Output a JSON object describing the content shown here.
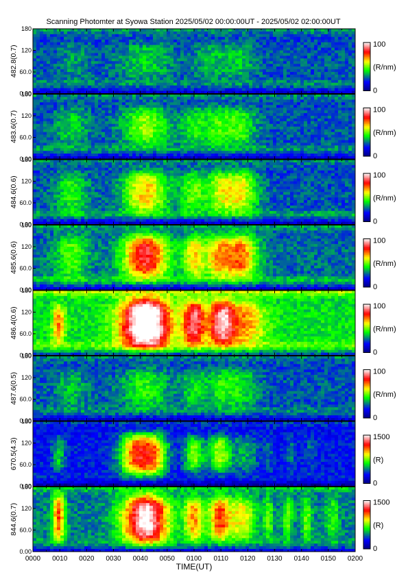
{
  "title": "Scanning Photomter at Syowa Station 2025/05/02 00:00:00UT - 2025/05/02 02:00:00UT",
  "chart_data": {
    "type": "heatmap",
    "title": "Scanning Photomter at Syowa Station 2025/05/02 00:00:00UT - 2025/05/02 02:00:00UT",
    "xlabel": "TIME(UT)",
    "x_ticks": [
      "0000",
      "0010",
      "0020",
      "0030",
      "0040",
      "0050",
      "0100",
      "0110",
      "0120",
      "0130",
      "0140",
      "0150",
      "0200"
    ],
    "xlim": [
      "0000",
      "0200"
    ],
    "y_ticks": [
      "0.00",
      "60.0",
      "120",
      "180"
    ],
    "ylim": [
      0,
      180
    ],
    "colormap": [
      "#000080",
      "#0000ff",
      "#00ff00",
      "#ffff00",
      "#ff0000",
      "#ffffff"
    ],
    "panels": [
      {
        "ylabel": "482.8(0.7)",
        "cbar_unit": "(R/nm)",
        "cbar_min": "0",
        "cbar_max": "100",
        "bg": 0.22,
        "rband": 0.07,
        "top": 0.24,
        "events": [
          {
            "t": 0.13,
            "w": 0.05,
            "a": 0.07,
            "lo": 30,
            "hi": 150
          },
          {
            "t": 0.35,
            "w": 0.08,
            "a": 0.13,
            "lo": 30,
            "hi": 150
          },
          {
            "t": 0.55,
            "w": 0.05,
            "a": 0.1,
            "lo": 30,
            "hi": 150
          },
          {
            "t": 0.64,
            "w": 0.05,
            "a": 0.11,
            "lo": 30,
            "hi": 150
          }
        ]
      },
      {
        "ylabel": "483.6(0.7)",
        "cbar_unit": "(R/nm)",
        "cbar_min": "0",
        "cbar_max": "100",
        "bg": 0.22,
        "rband": 0.08,
        "top": 0.22,
        "events": [
          {
            "t": 0.12,
            "w": 0.05,
            "a": 0.13,
            "lo": 25,
            "hi": 155
          },
          {
            "t": 0.35,
            "w": 0.07,
            "a": 0.26,
            "lo": 25,
            "hi": 155
          },
          {
            "t": 0.5,
            "w": 0.04,
            "a": 0.16,
            "lo": 25,
            "hi": 155
          },
          {
            "t": 0.57,
            "w": 0.04,
            "a": 0.17,
            "lo": 25,
            "hi": 155
          },
          {
            "t": 0.64,
            "w": 0.05,
            "a": 0.2,
            "lo": 25,
            "hi": 155
          }
        ]
      },
      {
        "ylabel": "484.6(0.6)",
        "cbar_unit": "(R/nm)",
        "cbar_min": "0",
        "cbar_max": "100",
        "bg": 0.22,
        "rband": 0.1,
        "top": 0.22,
        "events": [
          {
            "t": 0.12,
            "w": 0.05,
            "a": 0.17,
            "lo": 20,
            "hi": 160
          },
          {
            "t": 0.35,
            "w": 0.07,
            "a": 0.38,
            "lo": 20,
            "hi": 160
          },
          {
            "t": 0.5,
            "w": 0.04,
            "a": 0.22,
            "lo": 20,
            "hi": 160
          },
          {
            "t": 0.58,
            "w": 0.04,
            "a": 0.26,
            "lo": 20,
            "hi": 160
          },
          {
            "t": 0.645,
            "w": 0.05,
            "a": 0.33,
            "lo": 20,
            "hi": 160
          }
        ]
      },
      {
        "ylabel": "485.6(0.6)",
        "cbar_unit": "(R/nm)",
        "cbar_min": "0",
        "cbar_max": "100",
        "bg": 0.24,
        "rband": 0.11,
        "top": 0.24,
        "events": [
          {
            "t": 0.12,
            "w": 0.05,
            "a": 0.2,
            "lo": 20,
            "hi": 165
          },
          {
            "t": 0.35,
            "w": 0.07,
            "a": 0.56,
            "lo": 20,
            "hi": 165
          },
          {
            "t": 0.5,
            "w": 0.035,
            "a": 0.34,
            "lo": 20,
            "hi": 165
          },
          {
            "t": 0.575,
            "w": 0.04,
            "a": 0.35,
            "lo": 20,
            "hi": 165
          },
          {
            "t": 0.645,
            "w": 0.05,
            "a": 0.44,
            "lo": 20,
            "hi": 165
          }
        ]
      },
      {
        "ylabel": "486.4(0.6)",
        "cbar_unit": "(R/nm)",
        "cbar_min": "0",
        "cbar_max": "100",
        "bg": 0.36,
        "rband": 0.1,
        "top": 0.45,
        "events": [
          {
            "t": 0.08,
            "w": 0.02,
            "a": 0.3,
            "lo": 25,
            "hi": 150
          },
          {
            "t": 0.35,
            "w": 0.075,
            "a": 0.78,
            "lo": 10,
            "hi": 170
          },
          {
            "t": 0.5,
            "w": 0.035,
            "a": 0.5,
            "lo": 15,
            "hi": 165
          },
          {
            "t": 0.585,
            "w": 0.04,
            "a": 0.52,
            "lo": 15,
            "hi": 165
          },
          {
            "t": 0.66,
            "w": 0.06,
            "a": 0.28,
            "lo": 15,
            "hi": 165
          }
        ]
      },
      {
        "ylabel": "487.6(0.5)",
        "cbar_unit": "(R/nm)",
        "cbar_min": "0",
        "cbar_max": "100",
        "bg": 0.22,
        "rband": 0.07,
        "top": 0.22,
        "events": [
          {
            "t": 0.12,
            "w": 0.05,
            "a": 0.1,
            "lo": 25,
            "hi": 155
          },
          {
            "t": 0.35,
            "w": 0.07,
            "a": 0.18,
            "lo": 25,
            "hi": 155
          },
          {
            "t": 0.5,
            "w": 0.04,
            "a": 0.14,
            "lo": 25,
            "hi": 155
          },
          {
            "t": 0.58,
            "w": 0.04,
            "a": 0.14,
            "lo": 25,
            "hi": 155
          },
          {
            "t": 0.645,
            "w": 0.05,
            "a": 0.15,
            "lo": 25,
            "hi": 155
          }
        ]
      },
      {
        "ylabel": "670.5(4.3)",
        "cbar_unit": "(R)",
        "cbar_min": "0",
        "cbar_max": "1500",
        "bg": 0.16,
        "rband": 0.03,
        "top": 0.18,
        "events": [
          {
            "t": 0.08,
            "w": 0.02,
            "a": 0.18,
            "lo": 30,
            "hi": 150
          },
          {
            "t": 0.32,
            "w": 0.05,
            "a": 0.55,
            "lo": 20,
            "hi": 155
          },
          {
            "t": 0.38,
            "w": 0.04,
            "a": 0.38,
            "lo": 20,
            "hi": 155
          },
          {
            "t": 0.5,
            "w": 0.03,
            "a": 0.3,
            "lo": 30,
            "hi": 150
          },
          {
            "t": 0.58,
            "w": 0.035,
            "a": 0.34,
            "lo": 30,
            "hi": 150
          },
          {
            "t": 0.66,
            "w": 0.04,
            "a": 0.14,
            "lo": 30,
            "hi": 150
          },
          {
            "t": 0.73,
            "w": 0.015,
            "a": 0.08,
            "lo": 30,
            "hi": 150
          },
          {
            "t": 0.8,
            "w": 0.015,
            "a": 0.08,
            "lo": 30,
            "hi": 150
          },
          {
            "t": 0.86,
            "w": 0.015,
            "a": 0.08,
            "lo": 30,
            "hi": 150
          }
        ]
      },
      {
        "ylabel": "844.6(0.7)",
        "cbar_unit": "(R)",
        "cbar_min": "0",
        "cbar_max": "1500",
        "bg": 0.26,
        "rband": 0.05,
        "top": 0.3,
        "events": [
          {
            "t": 0.08,
            "w": 0.02,
            "a": 0.45,
            "lo": 20,
            "hi": 170
          },
          {
            "t": 0.35,
            "w": 0.07,
            "a": 0.72,
            "lo": 10,
            "hi": 170
          },
          {
            "t": 0.5,
            "w": 0.03,
            "a": 0.38,
            "lo": 20,
            "hi": 165
          },
          {
            "t": 0.58,
            "w": 0.035,
            "a": 0.45,
            "lo": 20,
            "hi": 165
          },
          {
            "t": 0.65,
            "w": 0.04,
            "a": 0.3,
            "lo": 20,
            "hi": 165
          },
          {
            "t": 0.73,
            "w": 0.015,
            "a": 0.18,
            "lo": 20,
            "hi": 165
          },
          {
            "t": 0.79,
            "w": 0.015,
            "a": 0.2,
            "lo": 20,
            "hi": 165
          },
          {
            "t": 0.85,
            "w": 0.015,
            "a": 0.2,
            "lo": 20,
            "hi": 165
          },
          {
            "t": 0.93,
            "w": 0.02,
            "a": 0.15,
            "lo": 20,
            "hi": 165
          }
        ]
      }
    ]
  }
}
